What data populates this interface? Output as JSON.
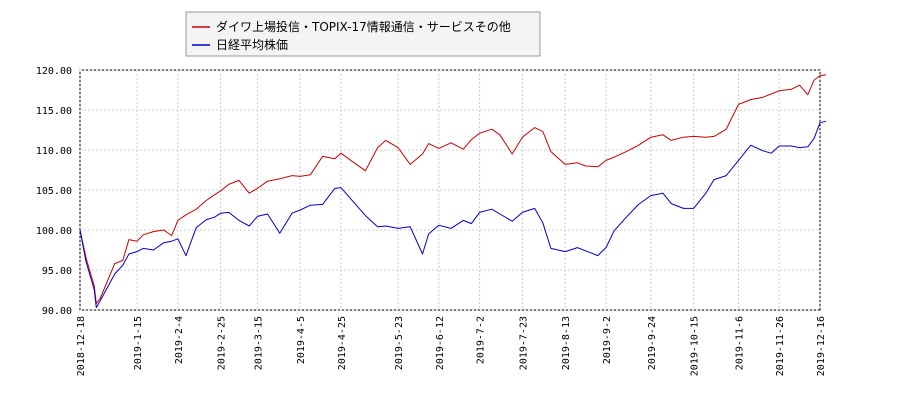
{
  "chart_data": {
    "type": "line",
    "title": "",
    "xlabel": "",
    "ylabel": "",
    "ylim": [
      90,
      120
    ],
    "yticks": [
      "120.00",
      "115.00",
      "110.00",
      "105.00",
      "100.00",
      "95.00",
      "90.00"
    ],
    "xticks": [
      "2018-12-18",
      "2019-1-15",
      "2019-2-4",
      "2019-2-25",
      "2019-3-15",
      "2019-4-5",
      "2019-4-25",
      "2019-5-23",
      "2019-6-12",
      "2019-7-2",
      "2019-7-23",
      "2019-8-13",
      "2019-9-2",
      "2019-9-24",
      "2019-10-15",
      "2019-11-6",
      "2019-11-26",
      "2019-12-16"
    ],
    "grid": true,
    "legend_position": "top-left",
    "series": [
      {
        "name": "ダイワ上場投信・TOPIX-17情報通信・サービスその他",
        "color": "#cc0000",
        "x": [
          "2018-12-18",
          "2018-12-21",
          "2018-12-25",
          "2018-12-26",
          "2018-12-28",
          "2019-01-04",
          "2019-01-08",
          "2019-01-11",
          "2019-01-15",
          "2019-01-18",
          "2019-01-23",
          "2019-01-28",
          "2019-02-01",
          "2019-02-04",
          "2019-02-08",
          "2019-02-13",
          "2019-02-18",
          "2019-02-22",
          "2019-02-25",
          "2019-03-01",
          "2019-03-06",
          "2019-03-11",
          "2019-03-15",
          "2019-03-20",
          "2019-03-26",
          "2019-04-01",
          "2019-04-05",
          "2019-04-10",
          "2019-04-16",
          "2019-04-22",
          "2019-04-25",
          "2019-05-07",
          "2019-05-13",
          "2019-05-17",
          "2019-05-23",
          "2019-05-29",
          "2019-06-04",
          "2019-06-07",
          "2019-06-12",
          "2019-06-18",
          "2019-06-24",
          "2019-06-28",
          "2019-07-02",
          "2019-07-08",
          "2019-07-12",
          "2019-07-18",
          "2019-07-23",
          "2019-07-29",
          "2019-08-02",
          "2019-08-06",
          "2019-08-13",
          "2019-08-19",
          "2019-08-23",
          "2019-08-29",
          "2019-09-02",
          "2019-09-06",
          "2019-09-12",
          "2019-09-18",
          "2019-09-24",
          "2019-09-30",
          "2019-10-04",
          "2019-10-10",
          "2019-10-15",
          "2019-10-21",
          "2019-10-25",
          "2019-10-31",
          "2019-11-06",
          "2019-11-12",
          "2019-11-18",
          "2019-11-22",
          "2019-11-26",
          "2019-12-02",
          "2019-12-06",
          "2019-12-10",
          "2019-12-13",
          "2019-12-16",
          "2019-12-19"
        ],
        "values": [
          100,
          96.5,
          93.0,
          90.8,
          91.5,
          95.8,
          96.2,
          98.8,
          98.6,
          99.4,
          99.8,
          100.0,
          99.3,
          101.2,
          101.9,
          102.6,
          103.7,
          104.4,
          104.9,
          105.7,
          106.2,
          104.6,
          105.2,
          106.1,
          106.4,
          106.8,
          106.7,
          106.9,
          109.2,
          108.9,
          109.6,
          107.4,
          110.3,
          111.2,
          110.3,
          108.2,
          109.5,
          110.8,
          110.2,
          110.9,
          110.1,
          111.3,
          112.1,
          112.6,
          111.9,
          109.5,
          111.6,
          112.8,
          112.3,
          109.8,
          108.2,
          108.4,
          108.0,
          107.9,
          108.7,
          109.1,
          109.8,
          110.6,
          111.6,
          111.9,
          111.2,
          111.6,
          111.7,
          111.6,
          111.7,
          112.6,
          115.7,
          116.3,
          116.6,
          117.0,
          117.4,
          117.6,
          118.1,
          116.9,
          118.7,
          119.3,
          119.4
        ]
      },
      {
        "name": "日経平均株価",
        "color": "#0000cc",
        "x": [
          "2018-12-18",
          "2018-12-21",
          "2018-12-25",
          "2018-12-26",
          "2018-12-28",
          "2019-01-04",
          "2019-01-08",
          "2019-01-11",
          "2019-01-15",
          "2019-01-18",
          "2019-01-23",
          "2019-01-28",
          "2019-02-01",
          "2019-02-04",
          "2019-02-08",
          "2019-02-13",
          "2019-02-18",
          "2019-02-22",
          "2019-02-25",
          "2019-03-01",
          "2019-03-06",
          "2019-03-11",
          "2019-03-15",
          "2019-03-20",
          "2019-03-26",
          "2019-04-01",
          "2019-04-05",
          "2019-04-10",
          "2019-04-16",
          "2019-04-22",
          "2019-04-25",
          "2019-05-07",
          "2019-05-13",
          "2019-05-17",
          "2019-05-23",
          "2019-05-29",
          "2019-06-04",
          "2019-06-07",
          "2019-06-12",
          "2019-06-18",
          "2019-06-24",
          "2019-06-28",
          "2019-07-02",
          "2019-07-08",
          "2019-07-12",
          "2019-07-18",
          "2019-07-23",
          "2019-07-29",
          "2019-08-02",
          "2019-08-06",
          "2019-08-13",
          "2019-08-19",
          "2019-08-23",
          "2019-08-29",
          "2019-09-02",
          "2019-09-06",
          "2019-09-12",
          "2019-09-18",
          "2019-09-24",
          "2019-09-30",
          "2019-10-04",
          "2019-10-10",
          "2019-10-15",
          "2019-10-21",
          "2019-10-25",
          "2019-10-31",
          "2019-11-06",
          "2019-11-12",
          "2019-11-18",
          "2019-11-22",
          "2019-11-26",
          "2019-12-02",
          "2019-12-06",
          "2019-12-10",
          "2019-12-13",
          "2019-12-16",
          "2019-12-19"
        ],
        "values": [
          100,
          96.0,
          92.5,
          90.3,
          91.2,
          94.5,
          95.6,
          97.0,
          97.3,
          97.7,
          97.5,
          98.4,
          98.6,
          98.9,
          96.8,
          100.3,
          101.3,
          101.6,
          102.1,
          102.2,
          101.2,
          100.5,
          101.7,
          102.0,
          99.6,
          102.1,
          102.5,
          103.1,
          103.2,
          105.2,
          105.3,
          101.8,
          100.4,
          100.5,
          100.2,
          100.4,
          97.0,
          99.5,
          100.6,
          100.2,
          101.2,
          100.8,
          102.2,
          102.6,
          102.0,
          101.1,
          102.2,
          102.7,
          100.9,
          97.7,
          97.3,
          97.8,
          97.4,
          96.8,
          97.8,
          99.9,
          101.6,
          103.2,
          104.3,
          104.6,
          103.3,
          102.7,
          102.7,
          104.6,
          106.3,
          106.8,
          108.7,
          110.6,
          109.9,
          109.6,
          110.5,
          110.5,
          110.3,
          110.4,
          111.4,
          113.4,
          113.6
        ]
      }
    ]
  }
}
